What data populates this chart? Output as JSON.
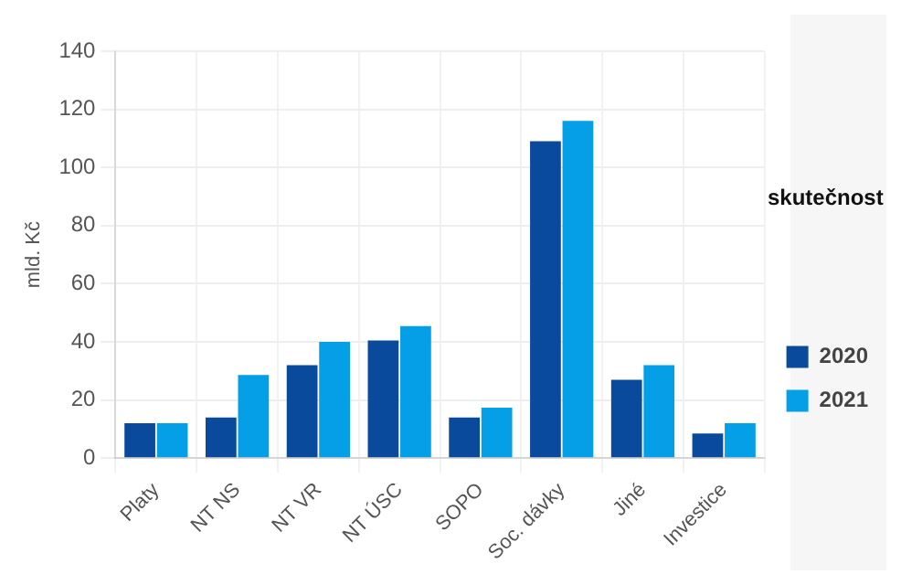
{
  "chart_data": {
    "type": "bar",
    "ylabel": "mld. Kč",
    "legend_title": "skutečnost",
    "categories": [
      "Platy",
      "NT NS",
      "NT VR",
      "NT ÚSC",
      "SOPO",
      "Soc. dávky",
      "Jiné",
      "Investice"
    ],
    "series": [
      {
        "name": "2020",
        "color": "#0a4a9c",
        "values": [
          12,
          14,
          32,
          40.5,
          14,
          109,
          27,
          8.5
        ]
      },
      {
        "name": "2021",
        "color": "#049fe6",
        "values": [
          12,
          28.6,
          40,
          45.4,
          17.4,
          116,
          32,
          12
        ]
      }
    ],
    "ylim": [
      0,
      140
    ],
    "yticks": [
      0,
      20,
      40,
      60,
      80,
      100,
      120,
      140
    ],
    "grid": true,
    "legend": "right"
  }
}
